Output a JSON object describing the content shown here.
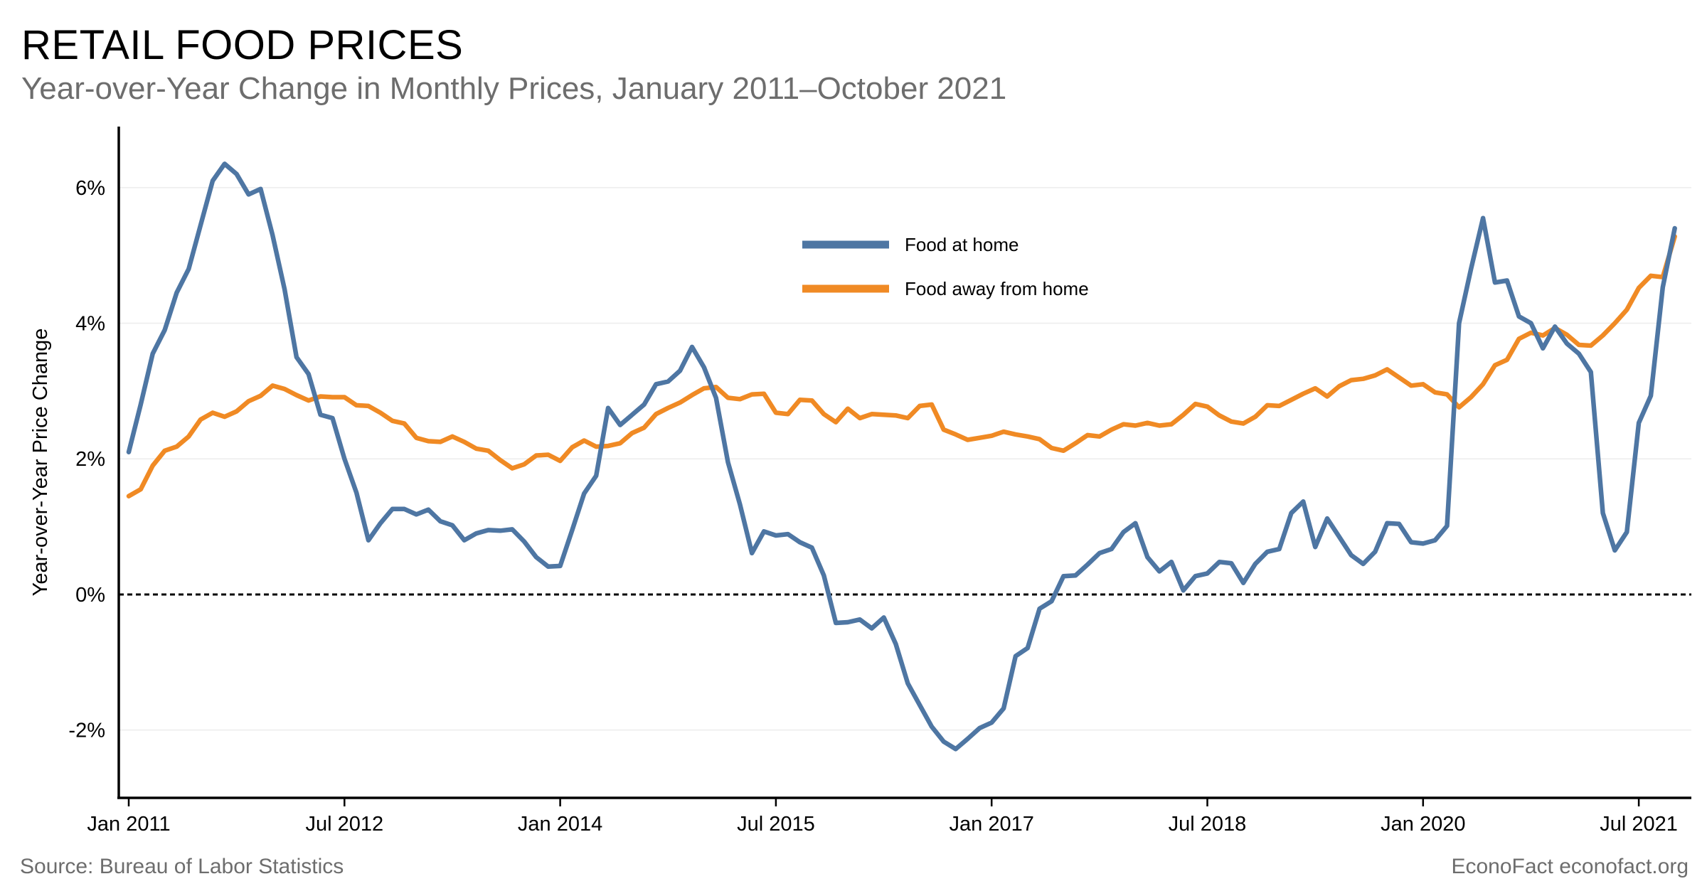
{
  "chart_data": {
    "type": "line",
    "title": "RETAIL FOOD PRICES",
    "subtitle": "Year-over-Year Change in Monthly Prices, January 2011–October 2021",
    "ylabel": "Year-over-Year Price Change",
    "xlabel": "",
    "ylim": [
      -3.0,
      6.9
    ],
    "yticks": [
      {
        "value": -2,
        "label": "-2%"
      },
      {
        "value": 0,
        "label": "0%"
      },
      {
        "value": 2,
        "label": "2%"
      },
      {
        "value": 4,
        "label": "4%"
      },
      {
        "value": 6,
        "label": "6%"
      }
    ],
    "xticks": [
      {
        "value": "2011-01",
        "label": "Jan 2011"
      },
      {
        "value": "2012-07",
        "label": "Jul 2012"
      },
      {
        "value": "2014-01",
        "label": "Jan 2014"
      },
      {
        "value": "2015-07",
        "label": "Jul 2015"
      },
      {
        "value": "2017-01",
        "label": "Jan 2017"
      },
      {
        "value": "2018-07",
        "label": "Jul 2018"
      },
      {
        "value": "2020-01",
        "label": "Jan 2020"
      },
      {
        "value": "2021-07",
        "label": "Jul 2021"
      }
    ],
    "x_range": [
      "2011-01",
      "2021-10"
    ],
    "reference_line": {
      "value": 0,
      "style": "dashed"
    },
    "grid": "horizontal",
    "legend_position": "top-right",
    "series": [
      {
        "name": "Food at home",
        "color": "#4e76a3",
        "values": [
          2.1,
          2.8,
          3.55,
          3.9,
          4.45,
          4.8,
          5.45,
          6.1,
          6.35,
          6.2,
          5.9,
          5.98,
          5.3,
          4.5,
          3.5,
          3.25,
          2.65,
          2.6,
          2.0,
          1.5,
          0.8,
          1.05,
          1.26,
          1.26,
          1.18,
          1.25,
          1.08,
          1.02,
          0.8,
          0.9,
          0.95,
          0.94,
          0.96,
          0.78,
          0.55,
          0.41,
          0.42,
          0.95,
          1.49,
          1.75,
          2.75,
          2.5,
          2.65,
          2.8,
          3.1,
          3.14,
          3.3,
          3.65,
          3.35,
          2.9,
          1.95,
          1.33,
          0.61,
          0.93,
          0.87,
          0.89,
          0.77,
          0.69,
          0.28,
          -0.42,
          -0.41,
          -0.37,
          -0.5,
          -0.34,
          -0.73,
          -1.31,
          -1.63,
          -1.95,
          -2.17,
          -2.28,
          -2.13,
          -1.97,
          -1.89,
          -1.68,
          -0.91,
          -0.79,
          -0.21,
          -0.1,
          0.27,
          0.28,
          0.44,
          0.61,
          0.67,
          0.92,
          1.05,
          0.55,
          0.34,
          0.48,
          0.06,
          0.27,
          0.31,
          0.48,
          0.46,
          0.17,
          0.45,
          0.63,
          0.67,
          1.2,
          1.37,
          0.7,
          1.12,
          0.85,
          0.58,
          0.45,
          0.63,
          1.05,
          1.04,
          0.77,
          0.75,
          0.8,
          1.01,
          4.0,
          4.8,
          5.55,
          4.6,
          4.63,
          4.1,
          4.0,
          3.63,
          3.95,
          3.7,
          3.55,
          3.28,
          1.2,
          0.65,
          0.92,
          2.53,
          2.93,
          4.53,
          5.4
        ]
      },
      {
        "name": "Food away from home",
        "color": "#f08a24",
        "values": [
          1.45,
          1.55,
          1.9,
          2.12,
          2.18,
          2.33,
          2.58,
          2.68,
          2.62,
          2.7,
          2.85,
          2.93,
          3.08,
          3.03,
          2.94,
          2.86,
          2.92,
          2.91,
          2.91,
          2.79,
          2.78,
          2.68,
          2.56,
          2.52,
          2.31,
          2.26,
          2.25,
          2.33,
          2.25,
          2.15,
          2.12,
          1.98,
          1.86,
          1.92,
          2.05,
          2.06,
          1.97,
          2.17,
          2.27,
          2.18,
          2.19,
          2.23,
          2.38,
          2.46,
          2.66,
          2.75,
          2.83,
          2.94,
          3.04,
          3.06,
          2.9,
          2.88,
          2.95,
          2.96,
          2.68,
          2.66,
          2.87,
          2.86,
          2.66,
          2.54,
          2.74,
          2.6,
          2.66,
          2.65,
          2.64,
          2.6,
          2.78,
          2.8,
          2.43,
          2.36,
          2.28,
          2.31,
          2.34,
          2.4,
          2.36,
          2.33,
          2.29,
          2.16,
          2.12,
          2.23,
          2.35,
          2.33,
          2.43,
          2.51,
          2.49,
          2.53,
          2.49,
          2.51,
          2.65,
          2.81,
          2.77,
          2.64,
          2.55,
          2.52,
          2.62,
          2.79,
          2.78,
          2.87,
          2.96,
          3.04,
          2.92,
          3.07,
          3.16,
          3.18,
          3.23,
          3.32,
          3.2,
          3.08,
          3.1,
          2.98,
          2.95,
          2.76,
          2.91,
          3.1,
          3.38,
          3.46,
          3.77,
          3.86,
          3.82,
          3.93,
          3.83,
          3.68,
          3.67,
          3.82,
          4.0,
          4.2,
          4.52,
          4.7,
          4.68,
          5.28
        ]
      }
    ]
  },
  "footer": {
    "source": "Source: Bureau of Labor Statistics",
    "credit": "EconoFact econofact.org"
  }
}
